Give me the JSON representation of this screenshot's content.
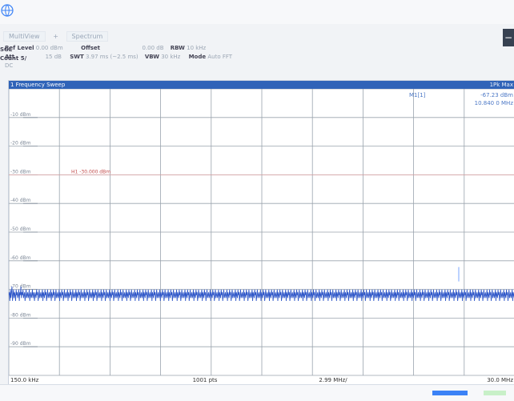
{
  "app": {
    "tabs": [
      "MultiView",
      "Spectrum"
    ],
    "right_button": "−",
    "logo_icon": "globe-icon"
  },
  "params": {
    "ref_level_label": "Ref Level",
    "ref_level_value": "0.00 dBm",
    "offset_label": "Offset",
    "offset_value": "0.00 dB",
    "rbw_label": "RBW",
    "rbw_value": "10 kHz",
    "att_label": "Att",
    "att_value": "15 dB",
    "swt_label": "SWT",
    "swt_value": "3.97 ms (~2.5 ms)",
    "vbw_label": "VBW",
    "vbw_value": "30 kHz",
    "mode_label": "Mode",
    "mode_value": "Auto FFT",
    "dc_label": "DC",
    "sgl": "SGL",
    "count": "Count 5/"
  },
  "trace": {
    "sweep_title": "1 Frequency Sweep",
    "sweep_right": "1Pk Max",
    "marker_label": "M1[1]",
    "marker_value_1": "-67.23 dBm",
    "marker_value_2": "10.840 0 MHz",
    "h1_label": "H1 -30.000 dBm"
  },
  "chart_data": {
    "type": "line",
    "title": "1 Frequency Sweep",
    "x_start_label": "150.0 kHz",
    "x_mid_label": "1001 pts",
    "x_step_label": "2.99 MHz/",
    "x_end_label": "30.0 MHz",
    "y_tick_labels": [
      "-10 dBm",
      "-20 dBm",
      "-30 dBm",
      "-40 dBm",
      "-50 dBm",
      "-60 dBm",
      "-70 dBm",
      "-80 dBm",
      "-90 dBm"
    ],
    "ylim": [
      -100,
      0
    ],
    "xlim_mhz": [
      0.15,
      30.0
    ],
    "threshold_dbm": -30,
    "series": [
      {
        "values": [
          -72,
          -71,
          -74,
          -70,
          -73,
          -71,
          -69,
          -74,
          -72,
          -70,
          -73,
          -71,
          -72,
          -74,
          -70,
          -72,
          -71,
          -73,
          -72,
          -70,
          -74,
          -71,
          -72,
          -69,
          -73,
          -71,
          -72,
          -70,
          -73,
          -72,
          -71,
          -74,
          -72,
          -70,
          -73,
          -72,
          -71,
          -73,
          -72,
          -70,
          -74,
          -72,
          -71,
          -73,
          -72,
          -70,
          -73,
          -71,
          -72,
          -74,
          -71,
          -72,
          -73,
          -70,
          -72,
          -71,
          -74,
          -72,
          -70,
          -73,
          -72,
          -71,
          -73,
          -72,
          -70,
          -74,
          -71,
          -72,
          -73,
          -70,
          -72,
          -71,
          -74,
          -72,
          -70,
          -73,
          -72,
          -71,
          -73,
          -72,
          -70,
          -74,
          -71,
          -72,
          -73,
          -70,
          -72,
          -71,
          -74,
          -72,
          -70,
          -73,
          -72,
          -71,
          -73,
          -72,
          -70,
          -74,
          -71,
          -72,
          -73,
          -70,
          -72,
          -71,
          -74,
          -72,
          -70,
          -73,
          -72,
          -71,
          -73,
          -72,
          -70,
          -74,
          -71,
          -72,
          -73,
          -70,
          -72,
          -71,
          -74,
          -72,
          -70,
          -73,
          -72,
          -71,
          -73,
          -72,
          -70,
          -74,
          -71,
          -72,
          -73,
          -70,
          -72,
          -71,
          -74,
          -72,
          -70,
          -73,
          -72,
          -71,
          -73,
          -72,
          -70,
          -74,
          -71,
          -72,
          -73,
          -70,
          -72,
          -71,
          -74,
          -72,
          -70,
          -73,
          -72,
          -71,
          -73,
          -72,
          -70,
          -74,
          -71,
          -72,
          -73,
          -70,
          -72,
          -71,
          -74,
          -72,
          -70,
          -73,
          -72,
          -71,
          -73,
          -72,
          -70,
          -74,
          -71,
          -72,
          -73,
          -70,
          -72,
          -71,
          -74,
          -72,
          -70,
          -73,
          -72,
          -71,
          -73,
          -72,
          -70,
          -74,
          -71,
          -72,
          -73,
          -70,
          -72,
          -71,
          -74,
          -72,
          -70,
          -73,
          -72,
          -71,
          -73,
          -72,
          -70,
          -74,
          -71,
          -72,
          -73,
          -70,
          -72,
          -71,
          -74,
          -72,
          -70,
          -73,
          -72,
          -71,
          -73,
          -72,
          -70,
          -74,
          -71,
          -72,
          -73,
          -70,
          -72,
          -71,
          -74,
          -72,
          -70,
          -73,
          -72,
          -71,
          -73,
          -72,
          -70,
          -74,
          -71,
          -72,
          -73,
          -70,
          -72,
          -71,
          -74,
          -72,
          -70,
          -73,
          -72,
          -71,
          -73,
          -72,
          -70,
          -74,
          -71,
          -72,
          -73,
          -70,
          -72,
          -71,
          -74,
          -72,
          -70,
          -73,
          -72,
          -71,
          -73,
          -72,
          -70,
          -74,
          -71,
          -72,
          -73,
          -70,
          -72,
          -71,
          -74,
          -72,
          -70,
          -73,
          -72,
          -71,
          -73,
          -72,
          -70,
          -74,
          -71,
          -72,
          -73,
          -70,
          -72,
          -71,
          -74,
          -72,
          -70,
          -73,
          -72,
          -71,
          -73,
          -72,
          -70,
          -74,
          -71,
          -72,
          -73,
          -70,
          -72,
          -71,
          -74,
          -72,
          -70,
          -73,
          -72,
          -71,
          -73,
          -72,
          -70,
          -74,
          -71,
          -72,
          -73,
          -70,
          -72,
          -71,
          -74,
          -72,
          -70,
          -73,
          -72,
          -71,
          -73,
          -72,
          -70,
          -74,
          -71,
          -72,
          -73,
          -70,
          -72,
          -71,
          -74,
          -72,
          -70,
          -73,
          -72,
          -71,
          -73,
          -72,
          -70,
          -74,
          -71,
          -72,
          -73,
          -70,
          -72,
          -71,
          -74,
          -72,
          -70,
          -73,
          -72,
          -71,
          -73,
          -72,
          -70,
          -74,
          -71,
          -72,
          -73,
          -70,
          -72,
          -71,
          -74,
          -72,
          -70,
          -73,
          -72,
          -71,
          -73,
          -72,
          -70,
          -74,
          -71,
          -72,
          -73,
          -70,
          -72,
          -71,
          -74,
          -72,
          -70,
          -73,
          -72,
          -71,
          -73,
          -72,
          -70,
          -74,
          -71,
          -72,
          -73,
          -70,
          -72,
          -71,
          -74,
          -72,
          -70,
          -73,
          -72,
          -71,
          -73,
          -72,
          -70,
          -74,
          -71,
          -72,
          -73,
          -70,
          -72,
          -71,
          -74,
          -72,
          -70,
          -73,
          -72,
          -71,
          -73,
          -72,
          -70,
          -74,
          -71,
          -72,
          -73,
          -70,
          -72,
          -71,
          -74,
          -72,
          -70,
          -73,
          -72,
          -71,
          -73,
          -72,
          -70,
          -74,
          -71,
          -72,
          -73,
          -70,
          -72,
          -71,
          -74,
          -72,
          -70,
          -73,
          -72,
          -71,
          -73,
          -72,
          -70,
          -74,
          -71,
          -72,
          -73,
          -70,
          -72,
          -71,
          -74,
          -72,
          -70,
          -73,
          -72,
          -71,
          -73,
          -72,
          -70,
          -74,
          -71,
          -72,
          -73,
          -70,
          -72,
          -71,
          -74,
          -72,
          -70,
          -73,
          -72,
          -71,
          -73,
          -72,
          -70,
          -74,
          -71,
          -72,
          -73,
          -70,
          -72,
          -71,
          -74,
          -72,
          -70,
          -73,
          -72,
          -71,
          -73,
          -72,
          -70,
          -74,
          -71,
          -72,
          -73,
          -70,
          -72,
          -71,
          -74,
          -72,
          -70,
          -73,
          -72,
          -71,
          -73,
          -72,
          -70,
          -74,
          -71,
          -72,
          -73,
          -70,
          -72,
          -71,
          -74,
          -72,
          -70,
          -73,
          -72,
          -71,
          -73,
          -72,
          -70,
          -74,
          -71,
          -72,
          -73,
          -70,
          -72,
          -71,
          -74,
          -72,
          -70,
          -73,
          -72,
          -71,
          -73,
          -72,
          -70,
          -74,
          -71,
          -72,
          -73,
          -70,
          -72,
          -71,
          -74,
          -72,
          -70,
          -73,
          -72,
          -71,
          -73,
          -72,
          -70,
          -74,
          -71,
          -72,
          -73,
          -70,
          -72,
          -71,
          -74,
          -72,
          -70,
          -73,
          -72,
          -71,
          -73,
          -72,
          -70,
          -74,
          -71,
          -72,
          -73,
          -70,
          -72,
          -71,
          -74,
          -72,
          -70,
          -73,
          -72,
          -71,
          -73,
          -72,
          -70,
          -74,
          -71,
          -72,
          -73,
          -70,
          -72,
          -71,
          -74,
          -72,
          -70,
          -73,
          -72,
          -71,
          -73,
          -72,
          -70,
          -74,
          -71,
          -72,
          -73,
          -70,
          -72,
          -71,
          -74,
          -72,
          -70,
          -73,
          -72,
          -71,
          -73,
          -72,
          -70,
          -74,
          -71,
          -72,
          -73,
          -70,
          -72,
          -71,
          -74,
          -72,
          -70,
          -73,
          -72,
          -71,
          -73,
          -72,
          -70,
          -74,
          -71,
          -72,
          -73,
          -70,
          -72,
          -71,
          -74,
          -72,
          -70,
          -73,
          -72,
          -71,
          -73,
          -72,
          -70,
          -74,
          -71,
          -72,
          -73,
          -70,
          -72,
          -71,
          -74,
          -72,
          -70,
          -73,
          -72,
          -71,
          -73,
          -72,
          -70,
          -74,
          -71,
          -72,
          -73,
          -70,
          -72,
          -71,
          -74,
          -72,
          -70,
          -73,
          -72,
          -71,
          -73,
          -72,
          -70,
          -74,
          -71,
          -72,
          -73,
          -70,
          -72,
          -71,
          -74,
          -72,
          -70,
          -73,
          -72,
          -71,
          -73,
          -72,
          -70,
          -74,
          -71,
          -72,
          -73,
          -70,
          -72,
          -71,
          -74,
          -72,
          -70,
          -73,
          -72,
          -71,
          -73,
          -72,
          -70,
          -74,
          -71,
          -72,
          -73,
          -70,
          -72,
          -71,
          -74,
          -72,
          -70,
          -73,
          -72,
          -71,
          -73,
          -72,
          -70,
          -74,
          -71,
          -72,
          -73,
          -70,
          -72,
          -71,
          -74,
          -72,
          -70,
          -73,
          -72,
          -71,
          -73,
          -72,
          -70,
          -74,
          -71,
          -72,
          -73,
          -70,
          -72,
          -71,
          -74,
          -72,
          -70,
          -73,
          -72,
          -71,
          -73,
          -72,
          -70,
          -74,
          -71,
          -72,
          -73,
          -70,
          -72,
          -71,
          -74,
          -72,
          -70,
          -73,
          -72,
          -71,
          -73,
          -72,
          -70,
          -74,
          -71,
          -72,
          -73,
          -70,
          -72,
          -71,
          -74,
          -72,
          -70,
          -73,
          -72,
          -71,
          -73,
          -72,
          -70,
          -74,
          -71,
          -72,
          -73,
          -70,
          -72,
          -71,
          -74,
          -72,
          -70,
          -73,
          -72,
          -71,
          -73,
          -72,
          -70,
          -74,
          -71,
          -72,
          -73,
          -70,
          -72,
          -71,
          -74,
          -72,
          -70,
          -73,
          -72,
          -71,
          -73,
          -72,
          -70,
          -74,
          -71,
          -72,
          -73,
          -70,
          -72,
          -71,
          -74,
          -72,
          -70,
          -73,
          -72,
          -71,
          -73,
          -72,
          -70,
          -74,
          -71,
          -72,
          -73,
          -70,
          -72,
          -71,
          -74,
          -72,
          -70,
          -73,
          -72,
          -71,
          -73,
          -72,
          -70,
          -74,
          -71,
          -72,
          -73,
          -70,
          -72,
          -71,
          -74,
          -72,
          -70,
          -73,
          -72,
          -71,
          -73,
          -72,
          -70,
          -74,
          -71,
          -72,
          -73,
          -70,
          -72,
          -71,
          -74,
          -72,
          -70,
          -73,
          -72,
          -71,
          -73,
          -72,
          -70,
          -74,
          -71,
          -72,
          -73,
          -70,
          -72,
          -71,
          -74,
          -72,
          -70,
          -73,
          -72,
          -71,
          -73,
          -72,
          -70,
          -74,
          -71,
          -72,
          -73,
          -70,
          -72,
          -71,
          -74,
          -72,
          -70,
          -73,
          -72,
          -71,
          -73,
          -72,
          -70,
          -74,
          -71,
          -72,
          -73,
          -70,
          -72,
          -71,
          -74,
          -72,
          -70,
          -73,
          -72,
          -71,
          -73,
          -72,
          -70,
          -74,
          -71,
          -72,
          -73,
          -70
        ]
      }
    ]
  }
}
